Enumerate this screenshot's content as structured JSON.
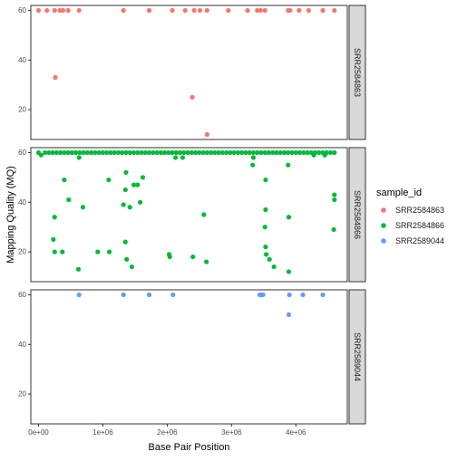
{
  "chart_data": {
    "type": "scatter",
    "xlabel": "Base Pair Position",
    "ylabel": "Mapping Quality (MQ)",
    "xlim": [
      -120000,
      4800000
    ],
    "ylim": [
      8,
      62
    ],
    "x_ticks": [
      0,
      1000000,
      2000000,
      3000000,
      4000000
    ],
    "x_tick_labels": [
      "0e+00",
      "1e+06",
      "2e+06",
      "3e+06",
      "4e+06"
    ],
    "y_ticks": [
      20,
      40,
      60
    ],
    "y_tick_labels": [
      "20",
      "40",
      "60"
    ],
    "grid": false,
    "legend": {
      "title": "sample_id",
      "position": "right",
      "entries": [
        "SRR2584863",
        "SRR2584866",
        "SRR2589044"
      ]
    },
    "colors": {
      "SRR2584863": "#F8766D",
      "SRR2584866": "#00BA38",
      "SRR2589044": "#619CFF",
      "strip_fill": "#d9d9d9",
      "axis": "#333333"
    },
    "facets": [
      {
        "name": "SRR2584863",
        "points": [
          [
            0,
            60
          ],
          [
            130000,
            60
          ],
          [
            250000,
            60
          ],
          [
            330000,
            60
          ],
          [
            380000,
            60
          ],
          [
            460000,
            60
          ],
          [
            630000,
            60
          ],
          [
            1320000,
            60
          ],
          [
            1720000,
            60
          ],
          [
            2080000,
            60
          ],
          [
            2280000,
            60
          ],
          [
            2420000,
            60
          ],
          [
            2510000,
            60
          ],
          [
            2620000,
            60
          ],
          [
            2950000,
            60
          ],
          [
            3250000,
            60
          ],
          [
            3400000,
            60
          ],
          [
            3450000,
            60
          ],
          [
            3520000,
            60
          ],
          [
            3880000,
            60
          ],
          [
            3910000,
            60
          ],
          [
            4050000,
            60
          ],
          [
            4200000,
            60
          ],
          [
            4420000,
            60
          ],
          [
            4600000,
            60
          ],
          [
            260000,
            33
          ],
          [
            2390000,
            25
          ],
          [
            2620000,
            10
          ]
        ]
      },
      {
        "name": "SRR2584866",
        "points": [
          [
            0,
            60
          ],
          [
            40000,
            59
          ],
          [
            100000,
            60
          ],
          [
            160000,
            60
          ],
          [
            220000,
            60
          ],
          [
            280000,
            60
          ],
          [
            340000,
            60
          ],
          [
            400000,
            60
          ],
          [
            460000,
            60
          ],
          [
            520000,
            60
          ],
          [
            580000,
            60
          ],
          [
            640000,
            60
          ],
          [
            700000,
            60
          ],
          [
            760000,
            60
          ],
          [
            820000,
            60
          ],
          [
            880000,
            60
          ],
          [
            940000,
            60
          ],
          [
            1000000,
            60
          ],
          [
            1060000,
            60
          ],
          [
            1120000,
            60
          ],
          [
            1180000,
            60
          ],
          [
            1240000,
            60
          ],
          [
            1300000,
            60
          ],
          [
            1360000,
            60
          ],
          [
            1420000,
            60
          ],
          [
            1480000,
            60
          ],
          [
            1540000,
            60
          ],
          [
            1600000,
            60
          ],
          [
            1660000,
            60
          ],
          [
            1720000,
            60
          ],
          [
            1780000,
            60
          ],
          [
            1840000,
            60
          ],
          [
            1900000,
            60
          ],
          [
            1960000,
            60
          ],
          [
            2020000,
            60
          ],
          [
            2080000,
            60
          ],
          [
            2140000,
            60
          ],
          [
            2200000,
            60
          ],
          [
            2260000,
            60
          ],
          [
            2320000,
            60
          ],
          [
            2380000,
            60
          ],
          [
            2440000,
            60
          ],
          [
            2500000,
            60
          ],
          [
            2560000,
            60
          ],
          [
            2620000,
            60
          ],
          [
            2680000,
            60
          ],
          [
            2740000,
            60
          ],
          [
            2800000,
            60
          ],
          [
            2860000,
            60
          ],
          [
            2920000,
            60
          ],
          [
            2980000,
            60
          ],
          [
            3040000,
            60
          ],
          [
            3100000,
            60
          ],
          [
            3160000,
            60
          ],
          [
            3220000,
            60
          ],
          [
            3280000,
            60
          ],
          [
            3340000,
            60
          ],
          [
            3400000,
            60
          ],
          [
            3460000,
            60
          ],
          [
            3520000,
            60
          ],
          [
            3580000,
            60
          ],
          [
            3640000,
            60
          ],
          [
            3700000,
            60
          ],
          [
            3760000,
            60
          ],
          [
            3820000,
            60
          ],
          [
            3880000,
            60
          ],
          [
            3940000,
            60
          ],
          [
            4000000,
            60
          ],
          [
            4060000,
            60
          ],
          [
            4120000,
            60
          ],
          [
            4180000,
            60
          ],
          [
            4240000,
            60
          ],
          [
            4300000,
            60
          ],
          [
            4360000,
            60
          ],
          [
            4420000,
            60
          ],
          [
            4480000,
            60
          ],
          [
            4540000,
            60
          ],
          [
            4600000,
            60
          ],
          [
            630000,
            58
          ],
          [
            2130000,
            58
          ],
          [
            2240000,
            58
          ],
          [
            3340000,
            58
          ],
          [
            4280000,
            59
          ],
          [
            4450000,
            59
          ],
          [
            1360000,
            52
          ],
          [
            1620000,
            50
          ],
          [
            1480000,
            47
          ],
          [
            1540000,
            47
          ],
          [
            400000,
            49
          ],
          [
            1090000,
            49
          ],
          [
            3330000,
            55
          ],
          [
            3880000,
            55
          ],
          [
            3530000,
            49
          ],
          [
            1350000,
            45
          ],
          [
            1320000,
            39
          ],
          [
            1420000,
            38
          ],
          [
            1580000,
            40
          ],
          [
            470000,
            41
          ],
          [
            250000,
            34
          ],
          [
            690000,
            38
          ],
          [
            2570000,
            35
          ],
          [
            3890000,
            34
          ],
          [
            3530000,
            37
          ],
          [
            3520000,
            30
          ],
          [
            4600000,
            43
          ],
          [
            4600000,
            41
          ],
          [
            4590000,
            29
          ],
          [
            230000,
            25
          ],
          [
            250000,
            20
          ],
          [
            370000,
            20
          ],
          [
            920000,
            20
          ],
          [
            1100000,
            20
          ],
          [
            1350000,
            24
          ],
          [
            1370000,
            17
          ],
          [
            1450000,
            14
          ],
          [
            2030000,
            19
          ],
          [
            2040000,
            18
          ],
          [
            2400000,
            18
          ],
          [
            2610000,
            16
          ],
          [
            3530000,
            22
          ],
          [
            3540000,
            19
          ],
          [
            3590000,
            17
          ],
          [
            3660000,
            14
          ],
          [
            3890000,
            12
          ],
          [
            620000,
            13
          ]
        ]
      },
      {
        "name": "SRR2589044",
        "points": [
          [
            630000,
            60
          ],
          [
            1320000,
            60
          ],
          [
            1720000,
            60
          ],
          [
            2090000,
            60
          ],
          [
            3440000,
            60
          ],
          [
            3460000,
            60
          ],
          [
            3490000,
            60
          ],
          [
            3900000,
            60
          ],
          [
            4110000,
            60
          ],
          [
            4420000,
            60
          ],
          [
            3890000,
            52
          ]
        ]
      }
    ]
  }
}
